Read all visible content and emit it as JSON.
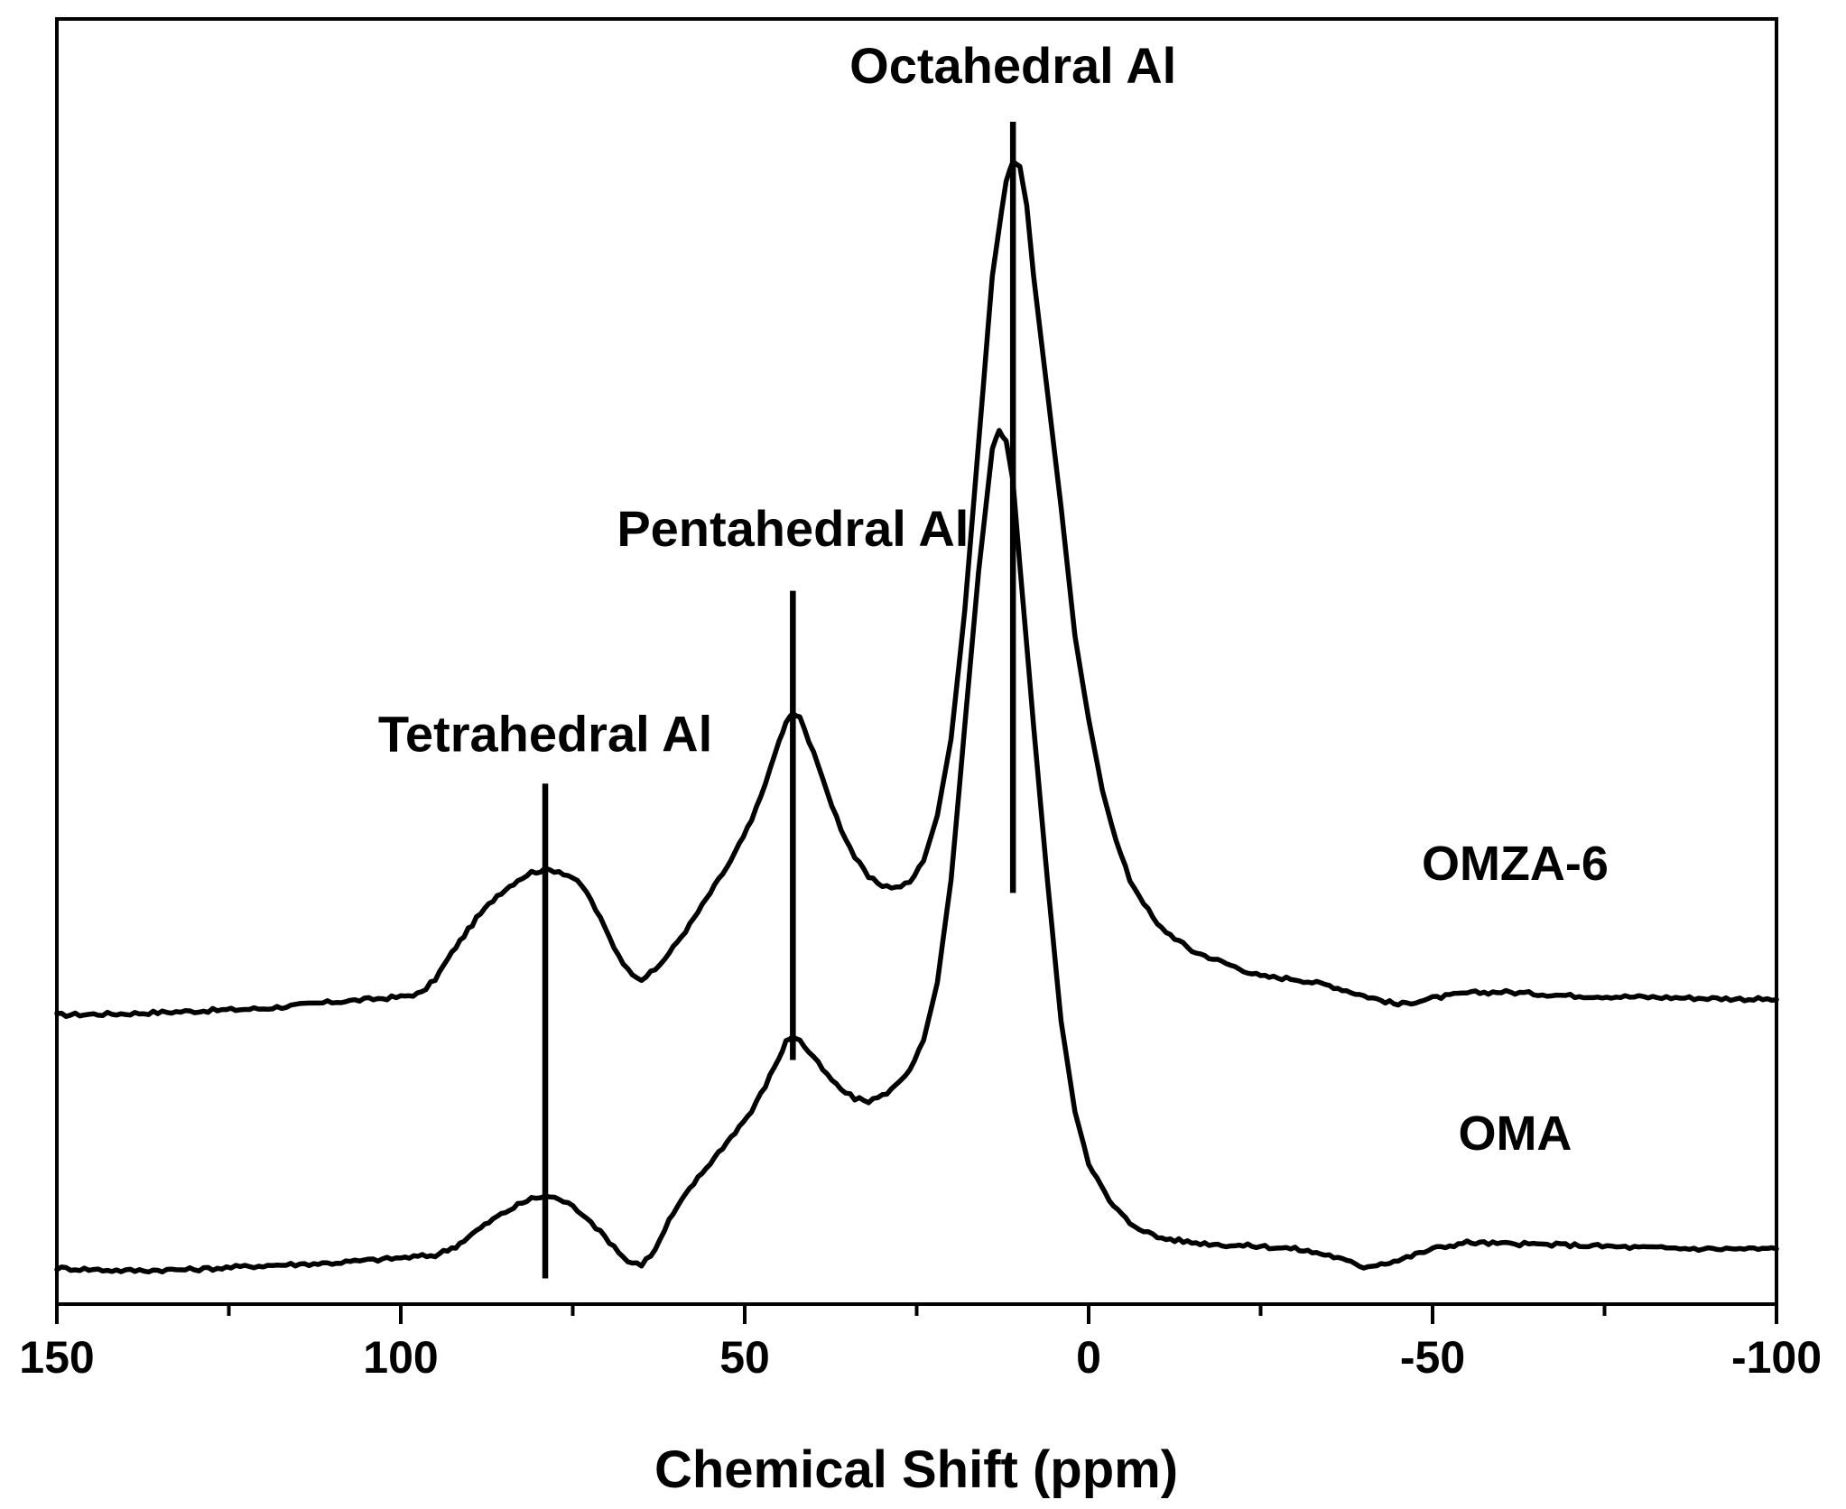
{
  "chart_data": {
    "type": "line",
    "title": "",
    "xlabel": "Chemical Shift (ppm)",
    "ylabel": "",
    "xlim": [
      150,
      -100
    ],
    "ylim": [
      0,
      100
    ],
    "x_ticks": [
      150,
      100,
      50,
      0,
      -50,
      -100
    ],
    "x_tick_labels": [
      "150",
      "100",
      "50",
      "0",
      "-50",
      "-100"
    ],
    "x_minor_ticks": [
      125,
      75,
      25,
      -25,
      -75
    ],
    "y_ticks": [],
    "series": [
      {
        "name": "OMZA-6",
        "points": [
          [
            150,
            22.5
          ],
          [
            140,
            22.6
          ],
          [
            130,
            22.8
          ],
          [
            120,
            23.0
          ],
          [
            110,
            23.5
          ],
          [
            100,
            23.9
          ],
          [
            97,
            24.2
          ],
          [
            95,
            25.3
          ],
          [
            92,
            27.8
          ],
          [
            89,
            30.0
          ],
          [
            86,
            31.8
          ],
          [
            83,
            33.0
          ],
          [
            81,
            33.6
          ],
          [
            79,
            33.8
          ],
          [
            77,
            33.7
          ],
          [
            75,
            33.2
          ],
          [
            73,
            32.1
          ],
          [
            71,
            30.0
          ],
          [
            69,
            27.8
          ],
          [
            67,
            26.0
          ],
          [
            65,
            25.3
          ],
          [
            63,
            26.0
          ],
          [
            61,
            27.3
          ],
          [
            58,
            29.5
          ],
          [
            55,
            32.0
          ],
          [
            52,
            34.5
          ],
          [
            49,
            37.6
          ],
          [
            47,
            40.5
          ],
          [
            45,
            43.8
          ],
          [
            44,
            45.2
          ],
          [
            43,
            46.0
          ],
          [
            42,
            45.6
          ],
          [
            40,
            43.0
          ],
          [
            38,
            39.8
          ],
          [
            36,
            37.0
          ],
          [
            34,
            34.8
          ],
          [
            32,
            33.2
          ],
          [
            30,
            32.6
          ],
          [
            28,
            32.4
          ],
          [
            26,
            32.8
          ],
          [
            24,
            34.5
          ],
          [
            22,
            38.0
          ],
          [
            20,
            44.0
          ],
          [
            18,
            54.0
          ],
          [
            16,
            67.0
          ],
          [
            14,
            80.0
          ],
          [
            12,
            87.5
          ],
          [
            11,
            89.0
          ],
          [
            10,
            88.5
          ],
          [
            9,
            85.5
          ],
          [
            8,
            80.0
          ],
          [
            6,
            71.0
          ],
          [
            4,
            62.0
          ],
          [
            2,
            52.0
          ],
          [
            0,
            45.5
          ],
          [
            -2,
            40.0
          ],
          [
            -4,
            36.0
          ],
          [
            -6,
            33.0
          ],
          [
            -10,
            29.5
          ],
          [
            -15,
            27.5
          ],
          [
            -20,
            26.5
          ],
          [
            -25,
            25.5
          ],
          [
            -30,
            25.3
          ],
          [
            -35,
            24.8
          ],
          [
            -40,
            24.0
          ],
          [
            -45,
            23.3
          ],
          [
            -50,
            23.8
          ],
          [
            -55,
            24.2
          ],
          [
            -60,
            24.3
          ],
          [
            -70,
            24.0
          ],
          [
            -80,
            23.9
          ],
          [
            -90,
            23.8
          ],
          [
            -100,
            23.7
          ]
        ]
      },
      {
        "name": "OMA",
        "points": [
          [
            150,
            2.8
          ],
          [
            140,
            2.6
          ],
          [
            130,
            2.7
          ],
          [
            120,
            3.0
          ],
          [
            110,
            3.2
          ],
          [
            100,
            3.6
          ],
          [
            95,
            3.8
          ],
          [
            92,
            4.5
          ],
          [
            89,
            5.7
          ],
          [
            86,
            6.8
          ],
          [
            83,
            7.7
          ],
          [
            81,
            8.2
          ],
          [
            79,
            8.4
          ],
          [
            77,
            8.2
          ],
          [
            75,
            7.6
          ],
          [
            73,
            6.8
          ],
          [
            71,
            5.6
          ],
          [
            69,
            4.5
          ],
          [
            67,
            3.3
          ],
          [
            65,
            3.1
          ],
          [
            63,
            4.2
          ],
          [
            61,
            6.5
          ],
          [
            58,
            9.0
          ],
          [
            55,
            11.0
          ],
          [
            52,
            13.0
          ],
          [
            49,
            15.0
          ],
          [
            47,
            17.0
          ],
          [
            45,
            19.2
          ],
          [
            44,
            20.4
          ],
          [
            43,
            20.9
          ],
          [
            42,
            20.5
          ],
          [
            40,
            19.2
          ],
          [
            38,
            17.8
          ],
          [
            36,
            16.7
          ],
          [
            34,
            16.0
          ],
          [
            32,
            15.8
          ],
          [
            30,
            16.2
          ],
          [
            28,
            17.0
          ],
          [
            26,
            18.3
          ],
          [
            24,
            20.5
          ],
          [
            22,
            25.0
          ],
          [
            20,
            33.0
          ],
          [
            18,
            45.0
          ],
          [
            16,
            57.0
          ],
          [
            14,
            66.5
          ],
          [
            13,
            68.0
          ],
          [
            12,
            67.2
          ],
          [
            11,
            64.0
          ],
          [
            10,
            57.5
          ],
          [
            8,
            45.0
          ],
          [
            6,
            33.0
          ],
          [
            4,
            22.0
          ],
          [
            2,
            15.0
          ],
          [
            0,
            11.0
          ],
          [
            -3,
            8.0
          ],
          [
            -6,
            6.3
          ],
          [
            -10,
            5.2
          ],
          [
            -15,
            4.8
          ],
          [
            -20,
            4.6
          ],
          [
            -25,
            4.5
          ],
          [
            -30,
            4.3
          ],
          [
            -35,
            3.8
          ],
          [
            -40,
            2.9
          ],
          [
            -45,
            3.4
          ],
          [
            -50,
            4.3
          ],
          [
            -55,
            4.8
          ],
          [
            -60,
            4.7
          ],
          [
            -70,
            4.6
          ],
          [
            -80,
            4.4
          ],
          [
            -90,
            4.3
          ],
          [
            -100,
            4.3
          ]
        ]
      }
    ],
    "series_labels": [
      {
        "text": "OMZA-6",
        "x": -62,
        "y": 33
      },
      {
        "text": "OMA",
        "x": -62,
        "y": 12
      }
    ],
    "annotations": [
      {
        "text": "Tetrahedral Al",
        "x": 79,
        "y_top": 40.5,
        "y_bottom": 2.0,
        "label_y": 43
      },
      {
        "text": "Pentahedral Al",
        "x": 43,
        "y_top": 55.5,
        "y_bottom": 19.0,
        "label_y": 59
      },
      {
        "text": "Octahedral Al",
        "x": 11,
        "y_top": 92.0,
        "y_bottom": 32.0,
        "label_y": 95
      }
    ]
  }
}
